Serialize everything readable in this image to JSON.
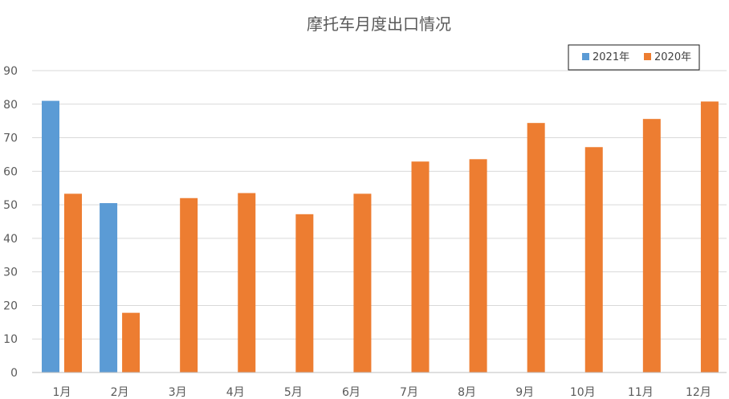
{
  "chart_data": {
    "type": "bar",
    "title": "摩托车月度出口情况",
    "xlabel": "",
    "ylabel": "",
    "categories": [
      "1月",
      "2月",
      "3月",
      "4月",
      "5月",
      "6月",
      "7月",
      "8月",
      "9月",
      "10月",
      "11月",
      "12月"
    ],
    "series": [
      {
        "name": "2021年",
        "color": "#5b9bd5",
        "values": [
          81,
          50.5,
          null,
          null,
          null,
          null,
          null,
          null,
          null,
          null,
          null,
          null
        ]
      },
      {
        "name": "2020年",
        "color": "#ed7d31",
        "values": [
          53.3,
          17.8,
          52,
          53.5,
          47.2,
          53.3,
          62.9,
          63.6,
          74.4,
          67.2,
          75.6,
          80.8
        ]
      }
    ],
    "ylim": [
      0,
      90
    ],
    "yticks": [
      0,
      10,
      20,
      30,
      40,
      50,
      60,
      70,
      80,
      90
    ],
    "grid": true,
    "legend_position": "top-right"
  }
}
